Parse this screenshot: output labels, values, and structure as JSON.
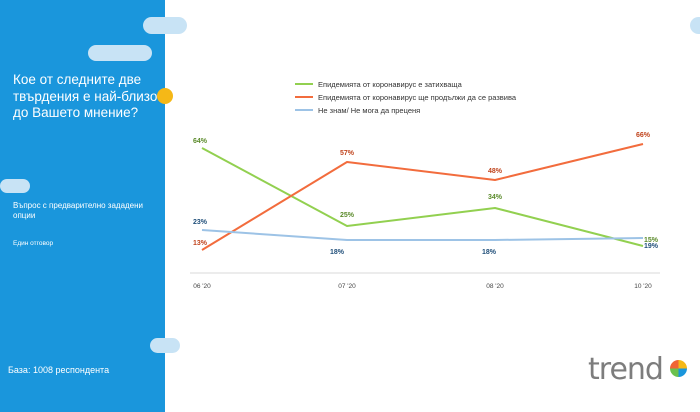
{
  "sidebar": {
    "question": "Кое от следните две твърдения е най-близо до Вашето мнение?",
    "subtitle": "Въпрос с предварително зададени опции",
    "note": "Един отговор",
    "base": "База: 1008 респондента"
  },
  "logo": {
    "text": "trend"
  },
  "colors": {
    "sidebar": "#1a96dc",
    "accent_dot": "#f5b817",
    "pill": "#c8e3f5"
  },
  "chart_data": {
    "type": "line",
    "categories": [
      "06 '20",
      "07 '20",
      "08 '20",
      "10 '20"
    ],
    "ylim": [
      0,
      75
    ],
    "legend_position": "top",
    "grid": false,
    "series": [
      {
        "name": "Епидемията от коронавирус е затихваща",
        "color": "#92d050",
        "label_color": "#5a8a2a",
        "values": [
          64,
          25,
          34,
          15
        ],
        "labels": [
          "64%",
          "25%",
          "34%",
          "15%"
        ]
      },
      {
        "name": "Епидемията от коронавирус ще продължи да се развива",
        "color": "#f26c3d",
        "label_color": "#c0441d",
        "values": [
          13,
          57,
          48,
          66
        ],
        "labels": [
          "13%",
          "57%",
          "48%",
          "66%"
        ]
      },
      {
        "name": "Не знам/ Не мога да преценя",
        "color": "#9dc3e6",
        "label_color": "#1f4e79",
        "values": [
          23,
          18,
          18,
          19
        ],
        "labels": [
          "23%",
          "18%",
          "18%",
          "19%"
        ]
      }
    ]
  }
}
